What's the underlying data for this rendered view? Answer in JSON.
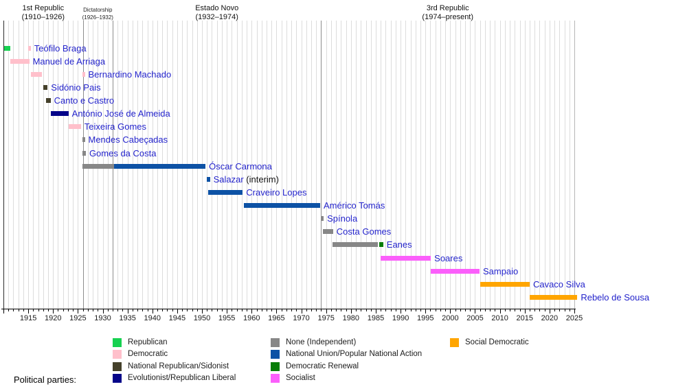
{
  "legend": {
    "title": "Political parties:",
    "columns": [
      [
        "republican",
        "democratic",
        "national_republican",
        "evolutionist"
      ],
      [
        "none",
        "national_union",
        "democratic_renewal",
        "socialist"
      ],
      [
        "social_democratic"
      ]
    ]
  },
  "parties": {
    "republican": {
      "label": "Republican",
      "color": "#17d151"
    },
    "democratic": {
      "label": "Democratic",
      "color": "#ffc0cb"
    },
    "national_republican": {
      "label": "National Republican/Sidonist",
      "color": "#45412b"
    },
    "evolutionist": {
      "label": "Evolutionist/Republican Liberal",
      "color": "#050589"
    },
    "none": {
      "label": "None (Independent)",
      "color": "#878787"
    },
    "national_union": {
      "label": "National Union/Popular National Action",
      "color": "#0d52a5"
    },
    "democratic_renewal": {
      "label": "Democratic Renewal",
      "color": "#077d07"
    },
    "socialist": {
      "label": "Socialist",
      "color": "#fb5ffb"
    },
    "social_democratic": {
      "label": "Social Democratic",
      "color": "#ffa500"
    }
  },
  "chart_data": {
    "type": "timeline",
    "x_axis": {
      "min": 1910,
      "max": 2025,
      "major_tick": 5,
      "minor_tick": 1,
      "tick_labels": [
        1915,
        1920,
        1925,
        1930,
        1935,
        1940,
        1945,
        1950,
        1955,
        1960,
        1965,
        1970,
        1975,
        1980,
        1985,
        1990,
        1995,
        2000,
        2005,
        2010,
        2015,
        2020,
        2025
      ]
    },
    "period_boundaries": [
      1926,
      1932,
      1974
    ],
    "periods": [
      {
        "label": "1st Republic",
        "range": "(1910–1926)",
        "start": 1910,
        "end": 1926,
        "small": false
      },
      {
        "label": "Dictatorship",
        "range": "(1926–1932)",
        "start": 1926,
        "end": 1932,
        "small": true
      },
      {
        "label": "Estado Novo",
        "range": "(1932–1974)",
        "start": 1932,
        "end": 1974,
        "small": false
      },
      {
        "label": "3rd Republic",
        "range": "(1974–present)",
        "start": 1974,
        "end": 2025,
        "small": false
      }
    ],
    "rows": [
      {
        "name": "Teófilo Braga",
        "segments": [
          [
            1910.2,
            1911.4,
            "republican"
          ],
          [
            1915.0,
            1915.5,
            "democratic"
          ]
        ]
      },
      {
        "name": "Manuel de Arriaga",
        "segments": [
          [
            1911.4,
            1915.2,
            "democratic"
          ]
        ]
      },
      {
        "name": "Bernardino Machado",
        "segments": [
          [
            1915.5,
            1917.8,
            "democratic"
          ],
          [
            1925.9,
            1926.4,
            "democratic"
          ]
        ]
      },
      {
        "name": "Sidónio Pais",
        "segments": [
          [
            1918.0,
            1918.9,
            "national_republican"
          ]
        ]
      },
      {
        "name": "Canto e Castro",
        "segments": [
          [
            1918.6,
            1919.5,
            "national_republican"
          ]
        ]
      },
      {
        "name": "António José de Almeida",
        "segments": [
          [
            1919.5,
            1923.1,
            "evolutionist"
          ]
        ]
      },
      {
        "name": "Teixeira Gomes",
        "segments": [
          [
            1923.1,
            1925.6,
            "democratic"
          ]
        ]
      },
      {
        "name": "Mendes Cabeçadas",
        "segments": [
          [
            1925.9,
            1926.4,
            "none"
          ]
        ]
      },
      {
        "name": "Gomes da Costa",
        "segments": [
          [
            1925.9,
            1926.6,
            "none"
          ]
        ]
      },
      {
        "name": "Óscar Carmona",
        "segments": [
          [
            1925.9,
            1932.3,
            "none"
          ],
          [
            1932.3,
            1950.7,
            "national_union"
          ]
        ]
      },
      {
        "name": "Salazar",
        "suffix": " (interim)",
        "segments": [
          [
            1951.0,
            1951.6,
            "national_union"
          ]
        ]
      },
      {
        "name": "Craveiro Lopes",
        "segments": [
          [
            1951.2,
            1958.2,
            "national_union"
          ]
        ]
      },
      {
        "name": "Américo Tomás",
        "segments": [
          [
            1958.4,
            1973.8,
            "national_union"
          ]
        ]
      },
      {
        "name": "Spínola",
        "segments": [
          [
            1973.9,
            1974.5,
            "none"
          ]
        ]
      },
      {
        "name": "Costa Gomes",
        "segments": [
          [
            1974.4,
            1976.4,
            "none"
          ]
        ]
      },
      {
        "name": "Eanes",
        "segments": [
          [
            1976.3,
            1985.4,
            "none"
          ],
          [
            1985.7,
            1986.5,
            "democratic_renewal"
          ]
        ]
      },
      {
        "name": "Soares",
        "segments": [
          [
            1986.0,
            1996.1,
            "socialist"
          ]
        ]
      },
      {
        "name": "Sampaio",
        "segments": [
          [
            1996.1,
            2005.9,
            "socialist"
          ]
        ]
      },
      {
        "name": "Cavaco Silva",
        "segments": [
          [
            2006.0,
            2016.0,
            "social_democratic"
          ]
        ]
      },
      {
        "name": "Rebelo de Sousa",
        "segments": [
          [
            2016.0,
            2025.6,
            "social_democratic"
          ]
        ]
      }
    ]
  }
}
